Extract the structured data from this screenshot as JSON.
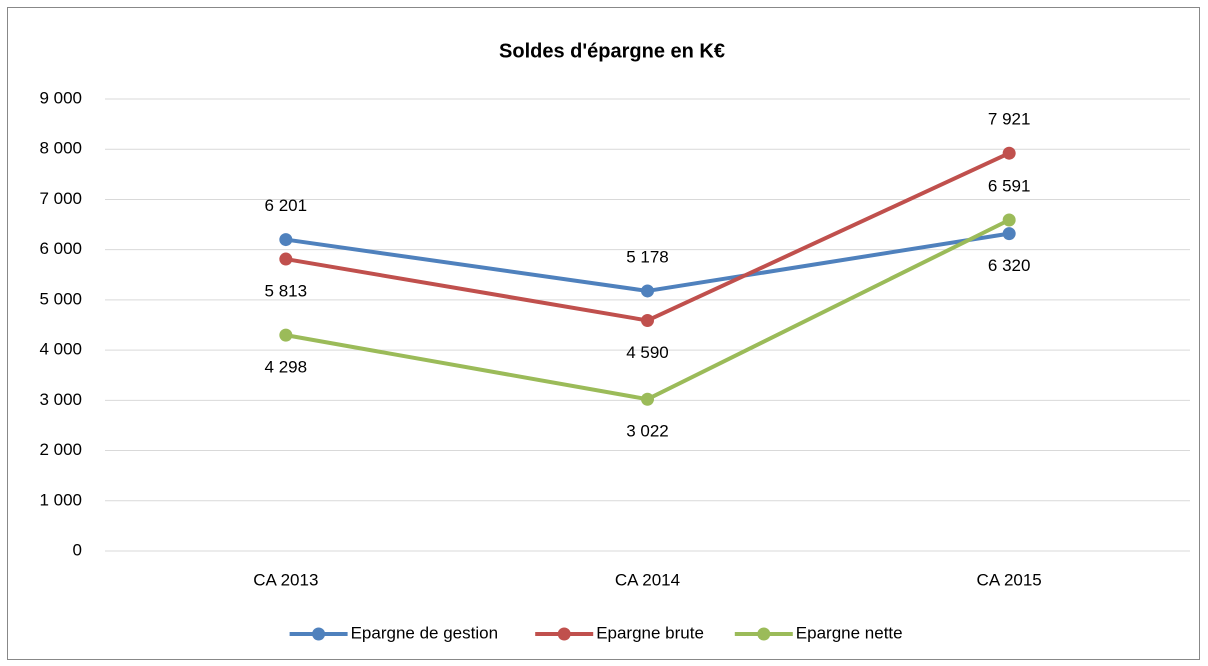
{
  "chart_data": {
    "type": "line",
    "title": "Soldes d'épargne en K€",
    "categories": [
      "CA 2013",
      "CA 2014",
      "CA 2015"
    ],
    "series": [
      {
        "name": "Epargne de gestion",
        "color": "#4f81bd",
        "values": [
          6201,
          5178,
          6320
        ],
        "value_labels": [
          "6 201",
          "5 178",
          "6 320"
        ]
      },
      {
        "name": "Epargne brute",
        "color": "#c0504d",
        "values": [
          5813,
          4590,
          7921
        ],
        "value_labels": [
          "5 813",
          "4 590",
          "7 921"
        ]
      },
      {
        "name": "Epargne nette",
        "color": "#9bbb59",
        "values": [
          4298,
          3022,
          6591
        ],
        "value_labels": [
          "4 298",
          "3 022",
          "6 591"
        ]
      }
    ],
    "ylim": [
      0,
      9000
    ],
    "yticks": [
      {
        "value": 0,
        "label": "0"
      },
      {
        "value": 1000,
        "label": "1 000"
      },
      {
        "value": 2000,
        "label": "2 000"
      },
      {
        "value": 3000,
        "label": "3 000"
      },
      {
        "value": 4000,
        "label": "4 000"
      },
      {
        "value": 5000,
        "label": "5 000"
      },
      {
        "value": 6000,
        "label": "6 000"
      },
      {
        "value": 7000,
        "label": "7 000"
      },
      {
        "value": 8000,
        "label": "8 000"
      },
      {
        "value": 9000,
        "label": "9 000"
      }
    ],
    "grid": true,
    "legend": "bottom"
  }
}
